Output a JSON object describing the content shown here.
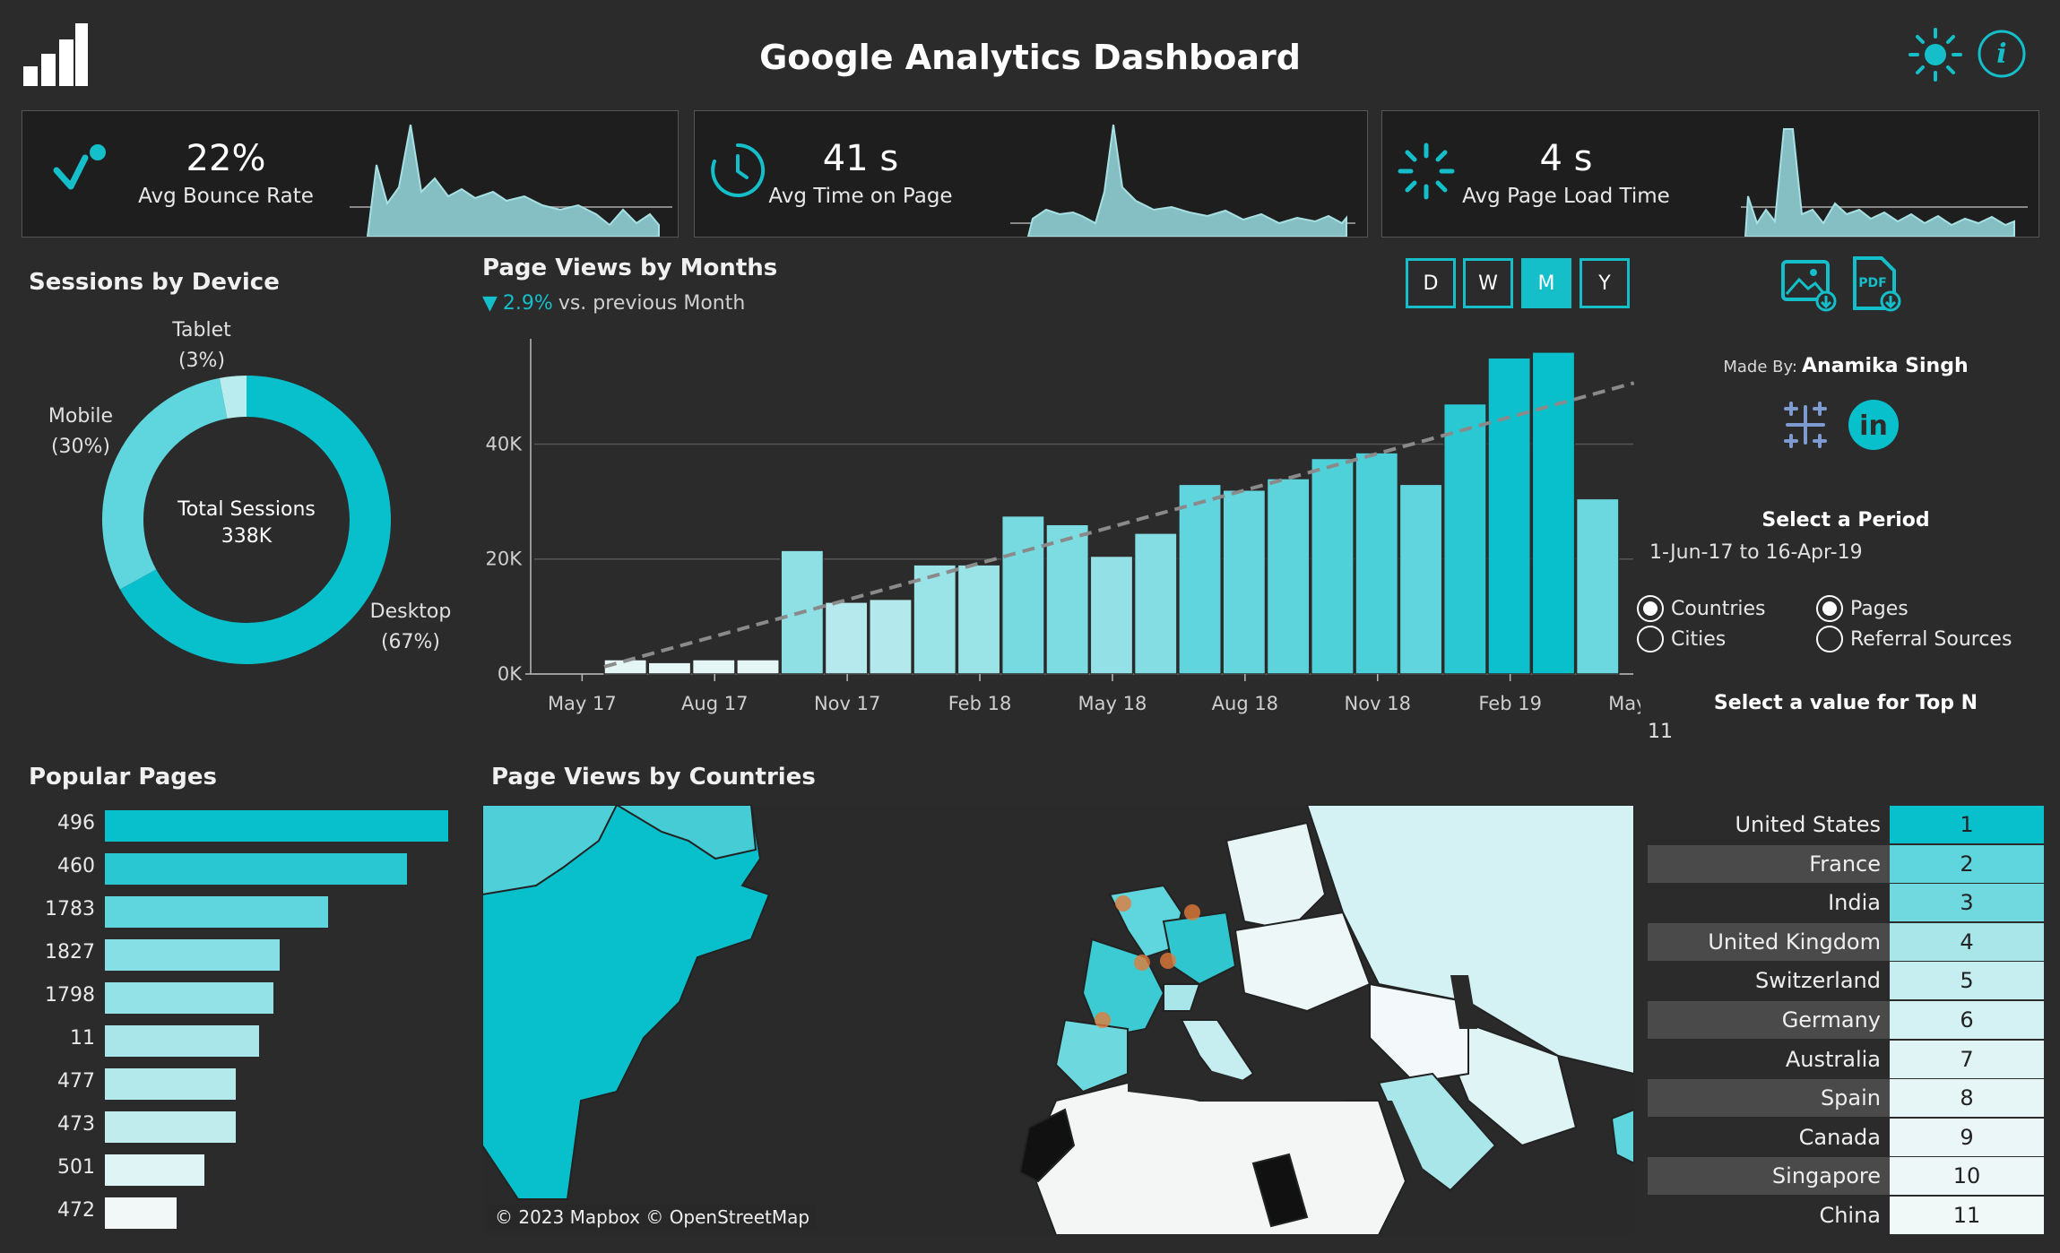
{
  "header": {
    "title": "Google Analytics Dashboard"
  },
  "kpis": [
    {
      "value": "22%",
      "label": "Avg Bounce Rate",
      "icon": "bounce-icon"
    },
    {
      "value": "41 s",
      "label": "Avg Time on Page",
      "icon": "clock-icon"
    },
    {
      "value": "4 s",
      "label": "Avg Page Load Time",
      "icon": "loading-icon"
    }
  ],
  "device": {
    "title": "Sessions by Device",
    "center_label": "Total Sessions",
    "center_value": "338K",
    "segments": [
      {
        "name": "Desktop",
        "pct": "(67%)",
        "value": 67,
        "color": "#08c0cc"
      },
      {
        "name": "Mobile",
        "pct": "(30%)",
        "value": 30,
        "color": "#5fd5dd"
      },
      {
        "name": "Tablet",
        "pct": "(3%)",
        "value": 3,
        "color": "#b8ecef"
      }
    ]
  },
  "pageviews": {
    "title": "Page Views by Months",
    "change": "2.9%",
    "change_suffix": "vs. previous Month",
    "period_buttons": [
      "D",
      "W",
      "M",
      "Y"
    ],
    "active_period": "M"
  },
  "chart_data": {
    "type": "bar",
    "title": "Page Views by Months",
    "x": [
      "Jun 17",
      "Jul 17",
      "Aug 17",
      "Sep 17",
      "Oct 17",
      "Nov 17",
      "Dec 17",
      "Jan 18",
      "Feb 18",
      "Mar 18",
      "Apr 18",
      "May 18",
      "Jun 18",
      "Jul 18",
      "Aug 18",
      "Sep 18",
      "Oct 18",
      "Nov 18",
      "Dec 18",
      "Jan 19",
      "Feb 19",
      "Mar 19",
      "Apr 19"
    ],
    "values": [
      2500,
      2000,
      2500,
      2500,
      21500,
      12500,
      13000,
      19000,
      19000,
      27500,
      26000,
      20500,
      24500,
      33000,
      32000,
      34000,
      37500,
      38500,
      33000,
      47000,
      55000,
      56000,
      30500
    ],
    "xtick_labels": [
      "May 17",
      "Aug 17",
      "Nov 17",
      "Feb 18",
      "May 18",
      "Aug 18",
      "Nov 18",
      "Feb 19",
      "May 19"
    ],
    "ytick_labels": [
      "0K",
      "20K",
      "40K"
    ],
    "ylim": [
      0,
      58000
    ],
    "trend_line": true,
    "grid": true
  },
  "sidebar": {
    "made_by_label": "Made By:",
    "author": "Anamika Singh",
    "period_title": "Select a Period",
    "period_value": "1-Jun-17 to 16-Apr-19",
    "radios_left": [
      {
        "label": "Countries",
        "checked": true
      },
      {
        "label": "Cities",
        "checked": false
      }
    ],
    "radios_right": [
      {
        "label": "Pages",
        "checked": true
      },
      {
        "label": "Referral Sources",
        "checked": false
      }
    ],
    "topn_title": "Select a value for Top N",
    "topn_value": "11"
  },
  "popular_pages": {
    "title": "Popular Pages",
    "items": [
      {
        "label": "496",
        "value": 100
      },
      {
        "label": "460",
        "value": 88
      },
      {
        "label": "1783",
        "value": 65
      },
      {
        "label": "1827",
        "value": 51
      },
      {
        "label": "1798",
        "value": 49
      },
      {
        "label": "11",
        "value": 45
      },
      {
        "label": "477",
        "value": 38
      },
      {
        "label": "473",
        "value": 38
      },
      {
        "label": "501",
        "value": 29
      },
      {
        "label": "472",
        "value": 21
      }
    ]
  },
  "map": {
    "title": "Page Views by Countries",
    "attribution": "© 2023 Mapbox © OpenStreetMap"
  },
  "ranking": [
    {
      "country": "United States",
      "rank": "1",
      "color": "#08c0cc"
    },
    {
      "country": "France",
      "rank": "2",
      "color": "#5fd5dd"
    },
    {
      "country": "India",
      "rank": "3",
      "color": "#70d9df"
    },
    {
      "country": "United Kingdom",
      "rank": "4",
      "color": "#a8e6ea"
    },
    {
      "country": "Switzerland",
      "rank": "5",
      "color": "#c6eef0"
    },
    {
      "country": "Germany",
      "rank": "6",
      "color": "#d4f2f3"
    },
    {
      "country": "Australia",
      "rank": "7",
      "color": "#e0f4f5"
    },
    {
      "country": "Spain",
      "rank": "8",
      "color": "#e6f5f6"
    },
    {
      "country": "Canada",
      "rank": "9",
      "color": "#eaf6f7"
    },
    {
      "country": "Singapore",
      "rank": "10",
      "color": "#eef7f8"
    },
    {
      "country": "China",
      "rank": "11",
      "color": "#f1f8f8"
    }
  ]
}
